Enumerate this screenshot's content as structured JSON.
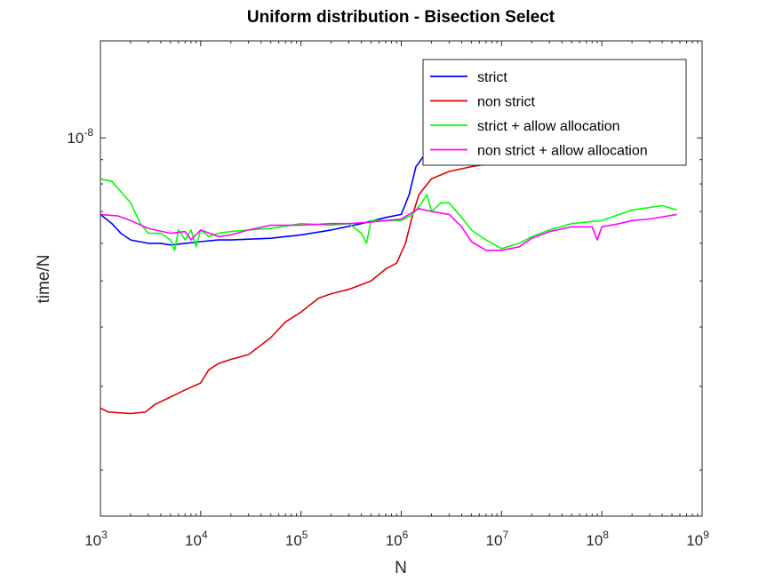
{
  "chart_data": {
    "type": "line",
    "title": "Uniform distribution - Bisection Select",
    "xlabel": "N",
    "ylabel": "time/N",
    "xscale": "log",
    "yscale": "log",
    "xlim": [
      1000,
      1000000000
    ],
    "ylim": [
      1.6e-09,
      1.6e-08
    ],
    "x_ticks": [
      {
        "base": "10",
        "exp": "3",
        "value": 1000
      },
      {
        "base": "10",
        "exp": "4",
        "value": 10000
      },
      {
        "base": "10",
        "exp": "5",
        "value": 100000
      },
      {
        "base": "10",
        "exp": "6",
        "value": 1000000
      },
      {
        "base": "10",
        "exp": "7",
        "value": 10000000
      },
      {
        "base": "10",
        "exp": "8",
        "value": 100000000
      },
      {
        "base": "10",
        "exp": "9",
        "value": 1000000000
      }
    ],
    "y_ticks": [
      {
        "base": "10",
        "exp": "-8",
        "value": 1e-08
      }
    ],
    "grid": false,
    "legend_position": "top-right",
    "series": [
      {
        "name": "strict",
        "color": "#0000ff",
        "x": [
          1000,
          1300,
          1600,
          2000,
          3000,
          4000,
          5000,
          7000,
          10000,
          15000,
          20000,
          50000,
          100000,
          200000,
          400000,
          700000,
          1000000,
          1200000,
          1400000,
          1700000,
          2000000,
          3000000,
          5000000,
          7000000,
          10000000,
          20000000,
          30000000,
          50000000,
          100000000,
          200000000,
          300000000,
          560000000
        ],
        "y": [
          6.9e-09,
          6.6e-09,
          6.3e-09,
          6.1e-09,
          6e-09,
          6e-09,
          5.95e-09,
          6e-09,
          6.05e-09,
          6.1e-09,
          6.1e-09,
          6.15e-09,
          6.25e-09,
          6.4e-09,
          6.6e-09,
          6.8e-09,
          6.9e-09,
          7.6e-09,
          8.7e-09,
          9.2e-09,
          9.4e-09,
          9.4e-09,
          9.5e-09,
          9.8e-09,
          9.8e-09,
          9.5e-09,
          9.5e-09,
          9.35e-09,
          9.35e-09,
          9.4e-09,
          9.35e-09,
          9.3e-09
        ]
      },
      {
        "name": "non strict",
        "color": "#e00000",
        "x": [
          1000,
          1200,
          1500,
          2000,
          2800,
          3500,
          5000,
          7000,
          10000,
          12000,
          15000,
          20000,
          30000,
          50000,
          70000,
          100000,
          150000,
          200000,
          300000,
          500000,
          700000,
          900000,
          1100000,
          1300000,
          1500000,
          2000000,
          3000000,
          5000000,
          10000000,
          20000000,
          50000000,
          100000000,
          200000000,
          560000000
        ],
        "y": [
          2.7e-09,
          2.65e-09,
          2.64e-09,
          2.63e-09,
          2.65e-09,
          2.75e-09,
          2.85e-09,
          2.95e-09,
          3.05e-09,
          3.25e-09,
          3.35e-09,
          3.42e-09,
          3.5e-09,
          3.8e-09,
          4.1e-09,
          4.3e-09,
          4.6e-09,
          4.7e-09,
          4.8e-09,
          5e-09,
          5.3e-09,
          5.45e-09,
          6e-09,
          6.9e-09,
          7.6e-09,
          8.2e-09,
          8.5e-09,
          8.7e-09,
          8.9e-09,
          9e-09,
          9.05e-09,
          9.3e-09,
          9.4e-09,
          9.3e-09
        ]
      },
      {
        "name": "strict + allow allocation",
        "color": "#00ff00",
        "x": [
          1000,
          1300,
          1600,
          2000,
          2500,
          3000,
          4000,
          5000,
          5500,
          6000,
          7000,
          8000,
          9000,
          10000,
          12000,
          15000,
          20000,
          30000,
          50000,
          100000,
          200000,
          300000,
          400000,
          450000,
          500000,
          700000,
          1000000,
          1300000,
          1600000,
          1800000,
          2000000,
          2500000,
          3000000,
          4000000,
          5000000,
          7000000,
          10000000,
          15000000,
          20000000,
          30000000,
          50000000,
          100000000,
          200000000,
          400000000,
          560000000
        ],
        "y": [
          8.2e-09,
          8.1e-09,
          7.7e-09,
          7.3e-09,
          6.6e-09,
          6.3e-09,
          6.3e-09,
          6.1e-09,
          5.8e-09,
          6.4e-09,
          6.1e-09,
          6.4e-09,
          5.9e-09,
          6.4e-09,
          6.2e-09,
          6.3e-09,
          6.35e-09,
          6.4e-09,
          6.45e-09,
          6.6e-09,
          6.55e-09,
          6.6e-09,
          6.3e-09,
          6e-09,
          6.7e-09,
          6.7e-09,
          6.7e-09,
          6.9e-09,
          7.3e-09,
          7.6e-09,
          7e-09,
          7.3e-09,
          7.3e-09,
          6.8e-09,
          6.4e-09,
          6.1e-09,
          5.85e-09,
          6e-09,
          6.2e-09,
          6.4e-09,
          6.6e-09,
          6.7e-09,
          7.05e-09,
          7.2e-09,
          7.05e-09
        ]
      },
      {
        "name": "non strict + allow allocation",
        "color": "#ff00ff",
        "x": [
          1000,
          1500,
          2000,
          3000,
          5000,
          7000,
          8000,
          10000,
          15000,
          20000,
          30000,
          50000,
          100000,
          200000,
          300000,
          500000,
          700000,
          1000000,
          1500000,
          2000000,
          3000000,
          4000000,
          5000000,
          7000000,
          10000000,
          15000000,
          20000000,
          30000000,
          50000000,
          80000000,
          90000000,
          100000000,
          150000000,
          200000000,
          300000000,
          560000000
        ],
        "y": [
          6.9e-09,
          6.85e-09,
          6.7e-09,
          6.45e-09,
          6.3e-09,
          6.35e-09,
          6.1e-09,
          6.4e-09,
          6.2e-09,
          6.25e-09,
          6.4e-09,
          6.55e-09,
          6.55e-09,
          6.6e-09,
          6.6e-09,
          6.65e-09,
          6.7e-09,
          6.75e-09,
          7.1e-09,
          7e-09,
          6.9e-09,
          6.5e-09,
          6.05e-09,
          5.8e-09,
          5.8e-09,
          5.9e-09,
          6.15e-09,
          6.35e-09,
          6.5e-09,
          6.5e-09,
          6.1e-09,
          6.5e-09,
          6.6e-09,
          6.7e-09,
          6.75e-09,
          6.9e-09
        ]
      }
    ]
  }
}
